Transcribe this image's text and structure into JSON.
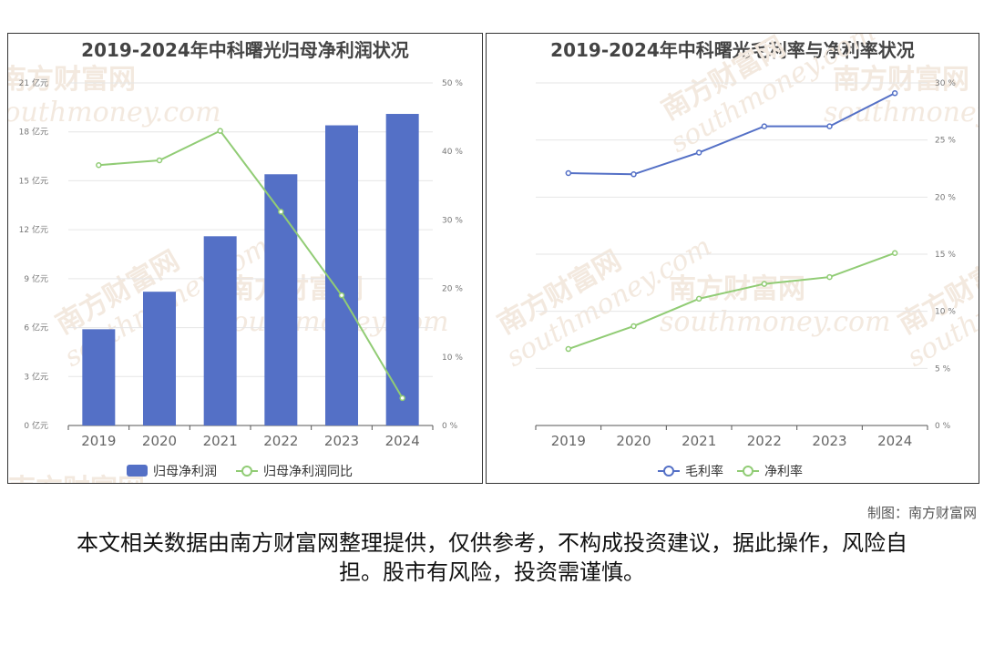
{
  "charts": {
    "left": {
      "title": "2019-2024年中科曙光归母净利润状况",
      "legend": [
        "归母净利润",
        "归母净利润同比"
      ]
    },
    "right": {
      "title": "2019-2024年中科曙光毛利率与净利率状况",
      "legend": [
        "毛利率",
        "净利率"
      ]
    }
  },
  "chart_data": [
    {
      "type": "bar",
      "title": "2019-2024年中科曙光归母净利润状况",
      "categories": [
        "2019",
        "2020",
        "2021",
        "2022",
        "2023",
        "2024"
      ],
      "series": [
        {
          "name": "归母净利润",
          "type": "bar",
          "axis": "left",
          "values": [
            5.9,
            8.2,
            11.6,
            15.4,
            18.4,
            19.1
          ]
        },
        {
          "name": "归母净利润同比",
          "type": "line",
          "axis": "right",
          "values": [
            38.0,
            38.7,
            43.0,
            31.2,
            19.0,
            4.0
          ]
        }
      ],
      "yticks_left": [
        "0 亿元",
        "3 亿元",
        "6 亿元",
        "9 亿元",
        "12 亿元",
        "15 亿元",
        "18 亿元",
        "21 亿元"
      ],
      "yticks_right": [
        "0 %",
        "10 %",
        "20 %",
        "30 %",
        "40 %",
        "50 %"
      ],
      "ylim_left": [
        0,
        21
      ],
      "ylim_right": [
        0,
        50
      ],
      "colors": {
        "bar": "#5470c6",
        "line": "#91cc75"
      },
      "legend_position": "bottom",
      "grid": true
    },
    {
      "type": "line",
      "title": "2019-2024年中科曙光毛利率与净利率状况",
      "categories": [
        "2019",
        "2020",
        "2021",
        "2022",
        "2023",
        "2024"
      ],
      "series": [
        {
          "name": "毛利率",
          "values": [
            22.1,
            22.0,
            23.9,
            26.2,
            26.2,
            29.1
          ]
        },
        {
          "name": "净利率",
          "values": [
            6.7,
            8.7,
            11.1,
            12.4,
            13.0,
            15.1
          ]
        }
      ],
      "yticks_right": [
        "0 %",
        "5 %",
        "10 %",
        "15 %",
        "20 %",
        "25 %",
        "30 %"
      ],
      "ylim": [
        0,
        30
      ],
      "colors": {
        "毛利率": "#5470c6",
        "净利率": "#91cc75"
      },
      "legend_position": "bottom",
      "grid": true
    }
  ],
  "footer": {
    "credit": "制图：南方财富网",
    "disclaimer": "本文相关数据由南方财富网整理提供，仅供参考，不构成投资建议，据此操作，风险自担。股市有风险，投资需谨慎。"
  },
  "watermark": {
    "cn": "南方财富网",
    "en": "southmoney.com"
  }
}
